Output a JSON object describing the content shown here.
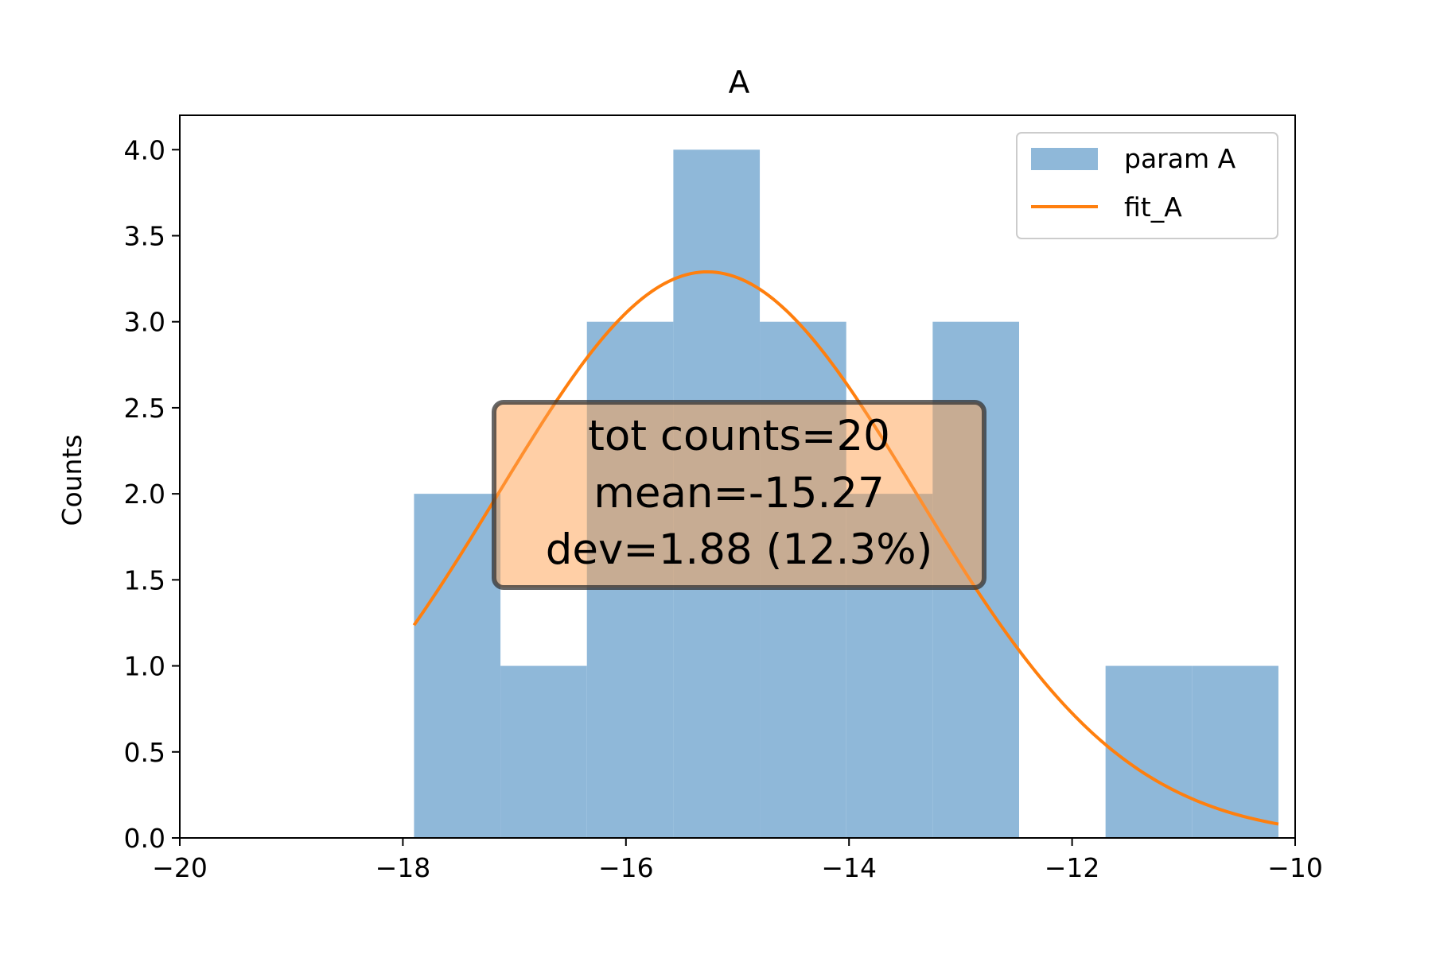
{
  "chart_data": {
    "type": "bar",
    "title": "A",
    "xlabel": "",
    "ylabel": "Counts",
    "xlim": [
      -20,
      -10
    ],
    "ylim": [
      0,
      4.2
    ],
    "xticks": [
      -20,
      -18,
      -16,
      -14,
      -12,
      -10
    ],
    "xtick_labels": [
      "−20",
      "−18",
      "−16",
      "−14",
      "−12",
      "−10"
    ],
    "yticks": [
      0,
      0.5,
      1,
      1.5,
      2,
      2.5,
      3,
      3.5,
      4
    ],
    "ytick_labels": [
      "0.0",
      "0.5",
      "1.0",
      "1.5",
      "2.0",
      "2.5",
      "3.0",
      "3.5",
      "4.0"
    ],
    "grid": false,
    "legend_position": "top-right",
    "series": [
      {
        "name": "param A",
        "type": "histogram",
        "color": "#8fb8d9",
        "bin_edges": [
          -17.9,
          -17.125,
          -16.35,
          -15.575,
          -14.8,
          -14.025,
          -13.25,
          -12.475,
          -11.7,
          -10.925,
          -10.15
        ],
        "counts": [
          2,
          1,
          3,
          4,
          3,
          2,
          3,
          0,
          1,
          1
        ]
      },
      {
        "name": "fit_A",
        "type": "line",
        "color": "#ff7f0e",
        "gaussian": {
          "amplitude": 3.29,
          "mean": -15.27,
          "sigma": 1.88
        },
        "x_range": [
          -17.9,
          -10.15
        ]
      }
    ],
    "annotation": {
      "lines": [
        "tot counts=20",
        "mean=-15.27",
        "dev=1.88 (12.3%)"
      ],
      "box_color": "#ffa04d",
      "edge_color": "#333333"
    }
  }
}
